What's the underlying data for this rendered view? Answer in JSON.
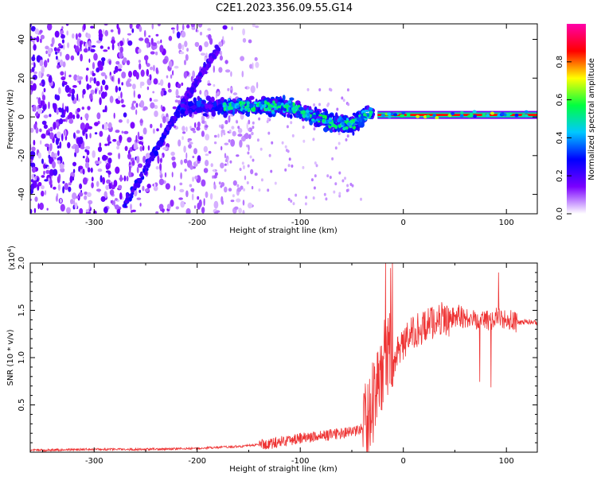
{
  "title": "C2E1.2023.356.09.55.G14",
  "chart_data": [
    {
      "type": "heatmap",
      "title": "C2E1.2023.356.09.55.G14",
      "xlabel": "Height of straight line (km)",
      "ylabel": "Frequency (Hz)",
      "xlim": [
        -362,
        130
      ],
      "ylim": [
        -50,
        48
      ],
      "x_ticks": [
        "-300",
        "-200",
        "-100",
        "0",
        "100"
      ],
      "y_ticks": [
        "40",
        "20",
        "0",
        "-20",
        "-40"
      ],
      "colorbar": {
        "label": "Normalized spectral amplitude",
        "range": [
          0,
          1
        ],
        "ticks": [
          "0.0",
          "0.2",
          "0.4",
          "0.6",
          "0.8"
        ],
        "colors": [
          "#ffffff",
          "#7a00ff",
          "#0000ff",
          "#00c8ff",
          "#00ff40",
          "#ffff00",
          "#ff0000",
          "#ff00aa"
        ]
      },
      "features": {
        "carrier_line": {
          "x_range": [
            -25,
            130
          ],
          "frequency": 1,
          "amplitude": 0.85
        },
        "main_band": {
          "points": [
            [
              -215,
              4
            ],
            [
              -180,
              6
            ],
            [
              -150,
              5
            ],
            [
              -120,
              6
            ],
            [
              -100,
              3
            ],
            [
              -70,
              -3
            ],
            [
              -50,
              -4
            ],
            [
              -30,
              2
            ]
          ],
          "amplitude": 0.45
        },
        "diagonal_branches": [
          {
            "from": [
              -270,
              -45
            ],
            "to": [
              -215,
              6
            ],
            "amplitude": 0.25
          },
          {
            "from": [
              -215,
              6
            ],
            "to": [
              -180,
              35
            ],
            "amplitude": 0.2
          }
        ],
        "noise_region": {
          "x_range": [
            -362,
            -140
          ],
          "frequency_range": [
            -50,
            48
          ],
          "amplitude": 0.15
        }
      }
    },
    {
      "type": "line",
      "title": "",
      "xlabel": "Height of straight line (km)",
      "ylabel": "SNR (10 * v/v)",
      "y_multiplier": "(x10",
      "y_multiplier_exp": "4",
      "y_multiplier_close": ")",
      "xlim": [
        -362,
        130
      ],
      "ylim": [
        0,
        2.0
      ],
      "x_ticks": [
        "-300",
        "-200",
        "-100",
        "0",
        "100"
      ],
      "y_ticks": [
        "0.5",
        "1.0",
        "1.5",
        "2.0"
      ],
      "series": [
        {
          "color": "#ee3333",
          "x": [
            -362,
            -300,
            -250,
            -200,
            -160,
            -130,
            -110,
            -100,
            -80,
            -60,
            -45,
            -35,
            -28,
            -22,
            -18,
            -14,
            -10,
            -5,
            0,
            8,
            15,
            25,
            35,
            45,
            55,
            65,
            75,
            85,
            95,
            100,
            105,
            110,
            120,
            130
          ],
          "y": [
            0.02,
            0.03,
            0.03,
            0.04,
            0.06,
            0.09,
            0.13,
            0.15,
            0.17,
            0.2,
            0.22,
            0.3,
            0.6,
            0.8,
            1.0,
            1.05,
            0.95,
            1.05,
            1.15,
            1.25,
            1.3,
            1.35,
            1.42,
            1.4,
            1.45,
            1.4,
            1.43,
            1.4,
            1.42,
            1.4,
            1.38,
            1.37,
            1.38,
            1.37
          ]
        }
      ]
    }
  ]
}
